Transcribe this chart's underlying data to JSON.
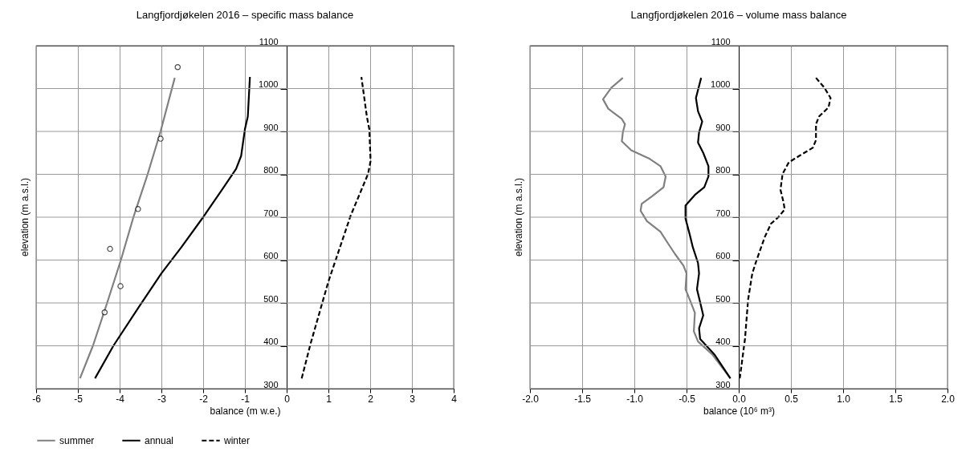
{
  "chart_data": [
    {
      "type": "line",
      "title": "Langfjordjøkelen 2016 –  specific mass balance",
      "xlabel": "balance (m w.e.)",
      "ylabel": "elevation (m a.s.l.)",
      "xlim": [
        -6,
        4
      ],
      "ylim": [
        300,
        1100
      ],
      "xticks": [
        -6,
        -5,
        -4,
        -3,
        -2,
        -1,
        0,
        1,
        2,
        3,
        4
      ],
      "yticks": [
        300,
        400,
        500,
        600,
        700,
        800,
        900,
        1000,
        1100
      ],
      "grid": true,
      "legend": "bottom",
      "series": [
        {
          "name": "summer",
          "color": "#808080",
          "x": [
            -4.95,
            -4.64,
            -4.3,
            -3.97,
            -3.67,
            -3.33,
            -3.02,
            -2.68
          ],
          "values": [
            324,
            400,
            500,
            600,
            700,
            800,
            900,
            1025
          ]
        },
        {
          "name": "annual",
          "color": "#000000",
          "x": [
            -4.59,
            -4.15,
            -3.55,
            -3.0,
            -2.52,
            -2.0,
            -1.55,
            -1.21,
            -1.09,
            -1.0,
            -0.93,
            -0.88
          ],
          "values": [
            324,
            400,
            489,
            569,
            630,
            700,
            764,
            813,
            843,
            905,
            935,
            1027
          ]
        },
        {
          "name": "winter",
          "color": "#000000",
          "line_style": "dashed",
          "x": [
            0.36,
            0.57,
            1.0,
            1.17,
            1.53,
            1.95,
            2.01,
            1.98,
            1.92,
            1.79
          ],
          "values": [
            324,
            404,
            550,
            599,
            703,
            801,
            831,
            905,
            935,
            1027
          ]
        },
        {
          "type": "scatter",
          "color": "#000000",
          "x": [
            -2.61,
            -3.02,
            -3.56,
            -4.23,
            -3.98,
            -4.36
          ],
          "values": [
            1050,
            883,
            719,
            626,
            539,
            478
          ]
        }
      ]
    },
    {
      "type": "line",
      "title": "Langfjordjøkelen 2016 –  volume mass balance",
      "xlabel": "balance (10⁶ m³)",
      "ylabel": "elevation (m a.s.l.)",
      "xlim": [
        -2,
        2
      ],
      "ylim": [
        300,
        1100
      ],
      "xticks": [
        {
          "value": -2,
          "label": "-2.0"
        },
        {
          "value": -1.5,
          "label": "-1.5"
        },
        {
          "value": -1,
          "label": "-1.0"
        },
        {
          "value": -0.5,
          "label": "-0.5"
        },
        {
          "value": 0,
          "label": "0.0"
        },
        {
          "value": 0.5,
          "label": "0.5"
        },
        {
          "value": 1,
          "label": "1.0"
        },
        {
          "value": 1.5,
          "label": "1.5"
        },
        {
          "value": 2,
          "label": "2.0"
        }
      ],
      "yticks": [
        300,
        400,
        500,
        600,
        700,
        800,
        900,
        1000,
        1100
      ],
      "grid": true,
      "legend": "bottom",
      "series": [
        {
          "name": "summer",
          "color": "#808080",
          "x": [
            -1.11,
            -1.22,
            -1.3,
            -1.25,
            -1.12,
            -1.09,
            -1.11,
            -1.12,
            -1.03,
            -0.86,
            -0.75,
            -0.7,
            -0.72,
            -0.83,
            -0.93,
            -0.94,
            -0.88,
            -0.75,
            -0.67,
            -0.61,
            -0.53,
            -0.5,
            -0.51,
            -0.46,
            -0.42,
            -0.43,
            -0.39,
            -0.25,
            -0.08
          ],
          "values": [
            1025,
            1002,
            975,
            953,
            929,
            917,
            898,
            877,
            856,
            837,
            819,
            795,
            770,
            749,
            731,
            715,
            691,
            666,
            636,
            614,
            587,
            569,
            532,
            502,
            477,
            434,
            410,
            379,
            324
          ]
        },
        {
          "name": "annual",
          "color": "#000000",
          "x": [
            -0.36,
            -0.41,
            -0.39,
            -0.35,
            -0.38,
            -0.39,
            -0.34,
            -0.29,
            -0.29,
            -0.33,
            -0.42,
            -0.51,
            -0.51,
            -0.47,
            -0.44,
            -0.39,
            -0.38,
            -0.4,
            -0.37,
            -0.34,
            -0.38,
            -0.37,
            -0.23,
            -0.08
          ],
          "values": [
            1025,
            978,
            947,
            923,
            898,
            874,
            850,
            819,
            795,
            770,
            752,
            727,
            697,
            660,
            630,
            593,
            569,
            532,
            502,
            471,
            441,
            416,
            379,
            324
          ]
        },
        {
          "name": "winter",
          "color": "#000000",
          "line_style": "dashed",
          "x": [
            0.74,
            0.82,
            0.88,
            0.86,
            0.77,
            0.74,
            0.74,
            0.71,
            0.58,
            0.48,
            0.42,
            0.4,
            0.43,
            0.44,
            0.38,
            0.31,
            0.25,
            0.17,
            0.13,
            0.09,
            0.06,
            0.01
          ],
          "values": [
            1025,
            1002,
            978,
            956,
            935,
            917,
            880,
            862,
            843,
            828,
            801,
            764,
            734,
            718,
            700,
            685,
            654,
            599,
            569,
            508,
            416,
            324
          ]
        }
      ]
    }
  ]
}
